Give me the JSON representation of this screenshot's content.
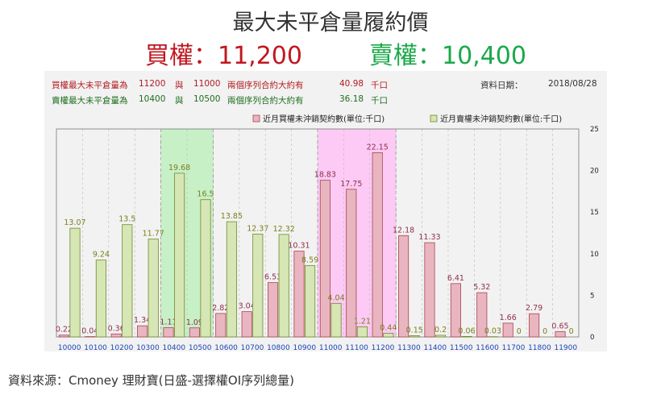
{
  "header": {
    "title": "最大未平倉量履約價",
    "buy_line": "買權：11,200",
    "sell_line": "賣權：10,400"
  },
  "info": {
    "buy_label": "買權最大未平倉量為",
    "buy_strike": "11200",
    "buy_and": "與",
    "buy_second": "11000",
    "buy_range_label": "兩個序列合約大約有",
    "buy_amount": "40.98",
    "buy_unit": "千口",
    "sell_label": "賣權最大未平倉量為",
    "sell_strike": "10400",
    "sell_and": "與",
    "sell_second": "10500",
    "sell_range_label": "兩個序列合約大約有",
    "sell_amount": "36.18",
    "sell_unit": "千口",
    "date_label": "資料日期：",
    "date_value": "2018/08/28"
  },
  "chart_data": {
    "type": "bar",
    "categories": [
      "10000",
      "10100",
      "10200",
      "10300",
      "10400",
      "10500",
      "10600",
      "10700",
      "10800",
      "10900",
      "11000",
      "11100",
      "11200",
      "11300",
      "11400",
      "11500",
      "11600",
      "11700",
      "11800",
      "11900"
    ],
    "series": [
      {
        "name": "近月買權未沖銷契約數(單位:千口)",
        "color": "#e9b5c0",
        "stroke": "#a8434f",
        "values": [
          0.22,
          0.04,
          0.36,
          1.34,
          1.11,
          1.09,
          2.82,
          3.04,
          6.53,
          10.31,
          18.83,
          17.75,
          22.15,
          12.18,
          11.33,
          6.41,
          5.32,
          1.66,
          2.79,
          0.65
        ]
      },
      {
        "name": "近月賣權未沖銷契約數(單位:千口)",
        "color": "#d6e6b4",
        "stroke": "#6f8a2e",
        "values": [
          13.07,
          9.24,
          13.5,
          11.77,
          19.68,
          16.5,
          13.85,
          12.37,
          12.32,
          8.59,
          4.04,
          1.21,
          0.44,
          0.15,
          0.2,
          0.06,
          0.03,
          0,
          0,
          0
        ]
      }
    ],
    "y_ticks": [
      "0",
      "5",
      "10",
      "15",
      "20",
      "25"
    ],
    "ylim": [
      0,
      25
    ],
    "highlights": [
      {
        "from": "10400",
        "to": "10500",
        "color": "#c7f0c7"
      },
      {
        "from": "11000",
        "to": "11200",
        "color": "#fccaf5"
      }
    ],
    "legend_position": "top-right",
    "grid": true
  },
  "footer": {
    "source": "資料來源：Cmoney 理財寶(日盛-選擇權OI序列總量)"
  }
}
